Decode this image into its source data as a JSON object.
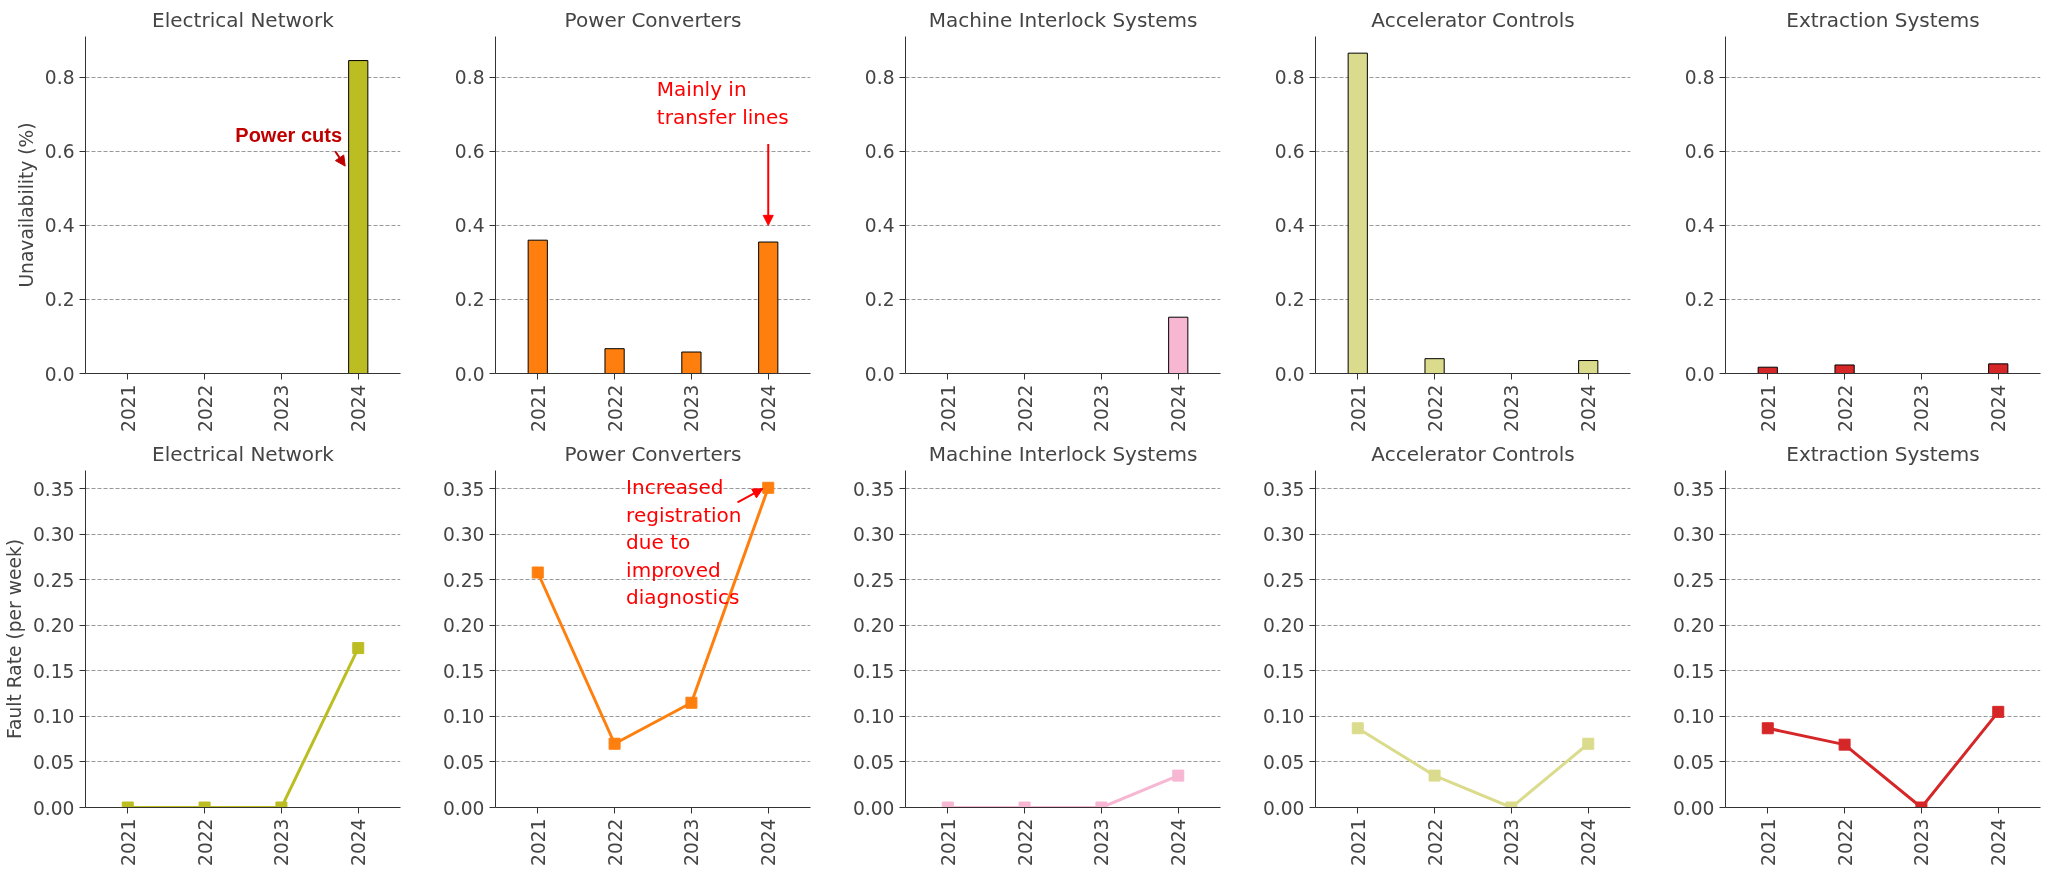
{
  "chart_data": [
    {
      "type": "bar",
      "title": "Electrical Network",
      "ylabel": "Unavailability (%)",
      "categories": [
        "2021",
        "2022",
        "2023",
        "2024"
      ],
      "ylim": [
        0,
        0.91
      ],
      "yticks": [
        {
          "value": 0,
          "label": "0.0"
        },
        0.2,
        0.4,
        0.6,
        0.8
      ],
      "grid": "y",
      "series": [
        {
          "color": "#bcbd22",
          "values": [
            0,
            0,
            0,
            0.845
          ]
        }
      ],
      "annotations": [
        "Power cuts"
      ]
    },
    {
      "type": "bar",
      "title": "Power Converters",
      "categories": [
        "2021",
        "2022",
        "2023",
        "2024"
      ],
      "ylim": [
        0,
        0.91
      ],
      "yticks": [
        {
          "value": 0,
          "label": "0.0"
        },
        0.2,
        0.4,
        0.6,
        0.8
      ],
      "grid": "y",
      "series": [
        {
          "color": "#ff7f0e",
          "values": [
            0.36,
            0.067,
            0.058,
            0.355
          ]
        }
      ],
      "annotations": [
        "Mainly in transfer lines"
      ]
    },
    {
      "type": "bar",
      "title": "Machine Interlock Systems",
      "categories": [
        "2021",
        "2022",
        "2023",
        "2024"
      ],
      "ylim": [
        0,
        0.91
      ],
      "yticks": [
        {
          "value": 0,
          "label": "0.0"
        },
        0.2,
        0.4,
        0.6,
        0.8
      ],
      "grid": "y",
      "series": [
        {
          "color": "#f7b6d2",
          "values": [
            0,
            0,
            0,
            0.152
          ]
        }
      ]
    },
    {
      "type": "bar",
      "title": "Accelerator Controls",
      "categories": [
        "2021",
        "2022",
        "2023",
        "2024"
      ],
      "ylim": [
        0,
        0.91
      ],
      "yticks": [
        {
          "value": 0,
          "label": "0.0"
        },
        0.2,
        0.4,
        0.6,
        0.8
      ],
      "grid": "y",
      "series": [
        {
          "color": "#dbdb8d",
          "values": [
            0.865,
            0.04,
            0,
            0.035
          ]
        }
      ]
    },
    {
      "type": "bar",
      "title": "Extraction Systems",
      "categories": [
        "2021",
        "2022",
        "2023",
        "2024"
      ],
      "ylim": [
        0,
        0.91
      ],
      "yticks": [
        {
          "value": 0,
          "label": "0.0"
        },
        0.2,
        0.4,
        0.6,
        0.8
      ],
      "grid": "y",
      "series": [
        {
          "color": "#d62728",
          "values": [
            0.017,
            0.023,
            0,
            0.026
          ]
        }
      ]
    },
    {
      "type": "line",
      "title": "Electrical Network",
      "ylabel": "Fault Rate (per week)",
      "categories": [
        "2021",
        "2022",
        "2023",
        "2024"
      ],
      "ylim": [
        0,
        0.37
      ],
      "yticks": [
        {
          "value": 0,
          "label": "0.00"
        },
        {
          "value": 0.05,
          "label": "0.05"
        },
        {
          "value": 0.1,
          "label": "0.10"
        },
        {
          "value": 0.15,
          "label": "0.15"
        },
        {
          "value": 0.2,
          "label": "0.20"
        },
        {
          "value": 0.25,
          "label": "0.25"
        },
        {
          "value": 0.3,
          "label": "0.30"
        },
        {
          "value": 0.35,
          "label": "0.35"
        }
      ],
      "grid": "y",
      "marker": "square",
      "series": [
        {
          "color": "#bcbd22",
          "values": [
            0,
            0,
            0,
            0.175
          ]
        }
      ]
    },
    {
      "type": "line",
      "title": "Power Converters",
      "categories": [
        "2021",
        "2022",
        "2023",
        "2024"
      ],
      "ylim": [
        0,
        0.37
      ],
      "yticks": [
        {
          "value": 0,
          "label": "0.00"
        },
        {
          "value": 0.05,
          "label": "0.05"
        },
        {
          "value": 0.1,
          "label": "0.10"
        },
        {
          "value": 0.15,
          "label": "0.15"
        },
        {
          "value": 0.2,
          "label": "0.20"
        },
        {
          "value": 0.25,
          "label": "0.25"
        },
        {
          "value": 0.3,
          "label": "0.30"
        },
        {
          "value": 0.35,
          "label": "0.35"
        }
      ],
      "grid": "y",
      "marker": "square",
      "series": [
        {
          "color": "#ff7f0e",
          "values": [
            0.258,
            0.07,
            0.115,
            0.351
          ]
        }
      ],
      "annotations": [
        {
          "text": "Increased registration due to improved diagnostics",
          "x": "2024",
          "y": 0.35
        }
      ]
    },
    {
      "type": "line",
      "title": "Machine Interlock Systems",
      "categories": [
        "2021",
        "2022",
        "2023",
        "2024"
      ],
      "ylim": [
        0,
        0.37
      ],
      "yticks": [
        {
          "value": 0,
          "label": "0.00"
        },
        {
          "value": 0.05,
          "label": "0.05"
        },
        {
          "value": 0.1,
          "label": "0.10"
        },
        {
          "value": 0.15,
          "label": "0.15"
        },
        {
          "value": 0.2,
          "label": "0.20"
        },
        {
          "value": 0.25,
          "label": "0.25"
        },
        {
          "value": 0.3,
          "label": "0.30"
        },
        {
          "value": 0.35,
          "label": "0.35"
        }
      ],
      "grid": "y",
      "marker": "square",
      "series": [
        {
          "color": "#f7b6d2",
          "values": [
            0,
            0,
            0,
            0.035
          ]
        }
      ]
    },
    {
      "type": "line",
      "title": "Accelerator Controls",
      "categories": [
        "2021",
        "2022",
        "2023",
        "2024"
      ],
      "ylim": [
        0,
        0.37
      ],
      "yticks": [
        {
          "value": 0,
          "label": "0.00"
        },
        {
          "value": 0.05,
          "label": "0.05"
        },
        {
          "value": 0.1,
          "label": "0.10"
        },
        {
          "value": 0.15,
          "label": "0.15"
        },
        {
          "value": 0.2,
          "label": "0.20"
        },
        {
          "value": 0.25,
          "label": "0.25"
        },
        {
          "value": 0.3,
          "label": "0.30"
        },
        {
          "value": 0.35,
          "label": "0.35"
        }
      ],
      "grid": "y",
      "marker": "square",
      "series": [
        {
          "color": "#dbdb8d",
          "values": [
            0.087,
            0.035,
            0,
            0.07
          ]
        }
      ]
    },
    {
      "type": "line",
      "title": "Extraction Systems",
      "categories": [
        "2021",
        "2022",
        "2023",
        "2024"
      ],
      "ylim": [
        0,
        0.37
      ],
      "yticks": [
        {
          "value": 0,
          "label": "0.00"
        },
        {
          "value": 0.05,
          "label": "0.05"
        },
        {
          "value": 0.1,
          "label": "0.10"
        },
        {
          "value": 0.15,
          "label": "0.15"
        },
        {
          "value": 0.2,
          "label": "0.20"
        },
        {
          "value": 0.25,
          "label": "0.25"
        },
        {
          "value": 0.3,
          "label": "0.30"
        },
        {
          "value": 0.35,
          "label": "0.35"
        }
      ],
      "grid": "y",
      "marker": "square",
      "series": [
        {
          "color": "#d62728",
          "values": [
            0.087,
            0.069,
            0,
            0.105
          ]
        }
      ]
    }
  ]
}
